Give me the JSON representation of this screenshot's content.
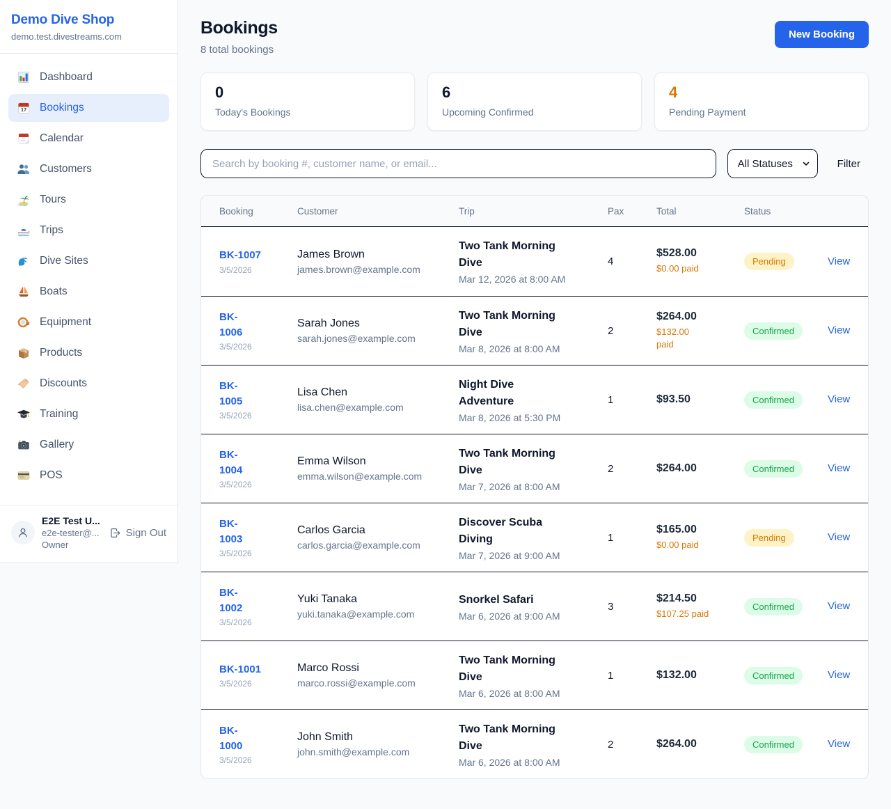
{
  "colors": {
    "accent_blue": "#2563eb",
    "page_background": "#f8fafc",
    "pending_text": "#d97706",
    "pending_background": "#fef3c7",
    "confirmed_text": "#16a34a",
    "confirmed_background": "#dcfce7",
    "paid_orange": "#d97706",
    "dark_divider": "#101828"
  },
  "sidebar": {
    "shop_name": "Demo Dive Shop",
    "shop_domain": "demo.test.divestreams.com",
    "nav": [
      {
        "label": "Dashboard",
        "icon": "bar-chart-icon",
        "active": false
      },
      {
        "label": "Bookings",
        "icon": "calendar-date-icon",
        "active": true
      },
      {
        "label": "Calendar",
        "icon": "tearoff-calendar-icon",
        "active": false
      },
      {
        "label": "Customers",
        "icon": "people-icon",
        "active": false
      },
      {
        "label": "Tours",
        "icon": "island-icon",
        "active": false
      },
      {
        "label": "Trips",
        "icon": "speedboat-icon",
        "active": false
      },
      {
        "label": "Dive Sites",
        "icon": "wave-icon",
        "active": false
      },
      {
        "label": "Boats",
        "icon": "sailboat-icon",
        "active": false
      },
      {
        "label": "Equipment",
        "icon": "dive-mask-icon",
        "active": false
      },
      {
        "label": "Products",
        "icon": "package-icon",
        "active": false
      },
      {
        "label": "Discounts",
        "icon": "tag-icon",
        "active": false
      },
      {
        "label": "Training",
        "icon": "grad-cap-icon",
        "active": false
      },
      {
        "label": "Gallery",
        "icon": "camera-icon",
        "active": false
      },
      {
        "label": "POS",
        "icon": "credit-card-icon",
        "active": false
      }
    ],
    "user": {
      "name": "E2E Test U...",
      "email": "e2e-tester@...",
      "role": "Owner",
      "sign_out_label": "Sign Out"
    }
  },
  "header": {
    "title": "Bookings",
    "subtitle": "8 total bookings",
    "new_booking_label": "New Booking"
  },
  "stats": [
    {
      "value": "0",
      "label": "Today's Bookings",
      "value_color": "#0f172a"
    },
    {
      "value": "6",
      "label": "Upcoming Confirmed",
      "value_color": "#0f172a"
    },
    {
      "value": "4",
      "label": "Pending Payment",
      "value_color": "#d97706"
    }
  ],
  "filters": {
    "search_placeholder": "Search by booking #, customer name, or email...",
    "status_selected": "All Statuses",
    "filter_label": "Filter"
  },
  "table": {
    "columns": [
      "Booking",
      "Customer",
      "Trip",
      "Pax",
      "Total",
      "Status"
    ],
    "view_label": "View",
    "rows": [
      {
        "id": "BK-1007",
        "id_two_line": false,
        "date": "3/5/2026",
        "customer": "James Brown",
        "email": "james.brown@example.com",
        "trip": "Two Tank Morning Dive",
        "trip_date": "Mar 12, 2026 at 8:00 AM",
        "pax": "4",
        "total": "$528.00",
        "paid": "$0.00 paid",
        "paid_two_line": false,
        "status": "Pending"
      },
      {
        "id": "BK-1006",
        "id_two_line": true,
        "date": "3/5/2026",
        "customer": "Sarah Jones",
        "email": "sarah.jones@example.com",
        "trip": "Two Tank Morning Dive",
        "trip_date": "Mar 8, 2026 at 8:00 AM",
        "pax": "2",
        "total": "$264.00",
        "paid": "$132.00 paid",
        "paid_two_line": true,
        "status": "Confirmed"
      },
      {
        "id": "BK-1005",
        "id_two_line": true,
        "date": "3/5/2026",
        "customer": "Lisa Chen",
        "email": "lisa.chen@example.com",
        "trip": "Night Dive Adventure",
        "trip_date": "Mar 8, 2026 at 5:30 PM",
        "pax": "1",
        "total": "$93.50",
        "paid": null,
        "paid_two_line": false,
        "status": "Confirmed"
      },
      {
        "id": "BK-1004",
        "id_two_line": true,
        "date": "3/5/2026",
        "customer": "Emma Wilson",
        "email": "emma.wilson@example.com",
        "trip": "Two Tank Morning Dive",
        "trip_date": "Mar 7, 2026 at 8:00 AM",
        "pax": "2",
        "total": "$264.00",
        "paid": null,
        "paid_two_line": false,
        "status": "Confirmed"
      },
      {
        "id": "BK-1003",
        "id_two_line": true,
        "date": "3/5/2026",
        "customer": "Carlos Garcia",
        "email": "carlos.garcia@example.com",
        "trip": "Discover Scuba Diving",
        "trip_date": "Mar 7, 2026 at 9:00 AM",
        "pax": "1",
        "total": "$165.00",
        "paid": "$0.00 paid",
        "paid_two_line": false,
        "status": "Pending"
      },
      {
        "id": "BK-1002",
        "id_two_line": true,
        "date": "3/5/2026",
        "customer": "Yuki Tanaka",
        "email": "yuki.tanaka@example.com",
        "trip": "Snorkel Safari",
        "trip_date": "Mar 6, 2026 at 9:00 AM",
        "pax": "3",
        "total": "$214.50",
        "paid": "$107.25 paid",
        "paid_two_line": false,
        "status": "Confirmed"
      },
      {
        "id": "BK-1001",
        "id_two_line": false,
        "date": "3/5/2026",
        "customer": "Marco Rossi",
        "email": "marco.rossi@example.com",
        "trip": "Two Tank Morning Dive",
        "trip_date": "Mar 6, 2026 at 8:00 AM",
        "pax": "1",
        "total": "$132.00",
        "paid": null,
        "paid_two_line": false,
        "status": "Confirmed"
      },
      {
        "id": "BK-1000",
        "id_two_line": true,
        "date": "3/5/2026",
        "customer": "John Smith",
        "email": "john.smith@example.com",
        "trip": "Two Tank Morning Dive",
        "trip_date": "Mar 6, 2026 at 8:00 AM",
        "pax": "2",
        "total": "$264.00",
        "paid": null,
        "paid_two_line": false,
        "status": "Confirmed"
      }
    ]
  }
}
